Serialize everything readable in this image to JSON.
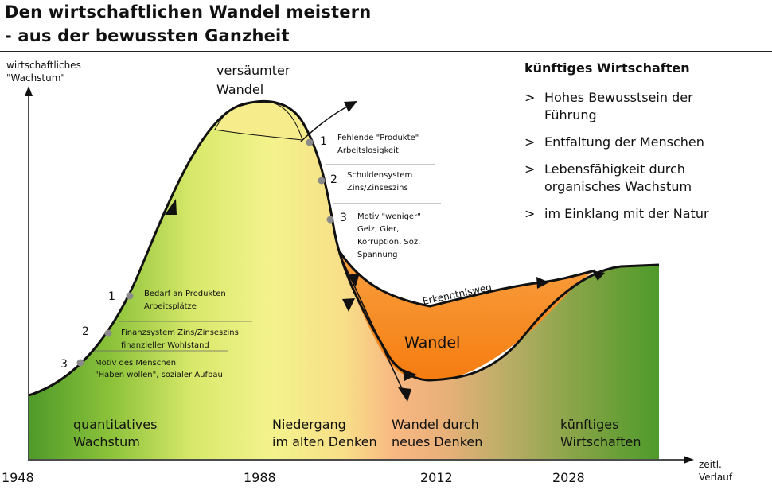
{
  "header": {
    "title_line1": "Den wirtschaftlichen Wandel meistern",
    "title_line2": "- aus der bewussten Ganzheit"
  },
  "axes": {
    "y_label_line1": "wirtschaftliches",
    "y_label_line2": "\"Wachstum\"",
    "x_label_line1": "zeitl.",
    "x_label_line2": "Verlauf",
    "years": [
      "1948",
      "1988",
      "2012",
      "2028"
    ]
  },
  "peak": {
    "line1": "versäumter",
    "line2": "Wandel"
  },
  "rise_points": [
    {
      "num": "1",
      "line1": "Bedarf an Produkten",
      "line2": "Arbeitsplätze"
    },
    {
      "num": "2",
      "line1": "Finanzsystem Zins/Zinseszins",
      "line2": "finanzieller Wohlstand"
    },
    {
      "num": "3",
      "line1": "Motiv des Menschen",
      "line2": "\"Haben wollen\", sozialer Aufbau"
    }
  ],
  "decline_points": [
    {
      "num": "1",
      "lines": [
        "Fehlende \"Produkte\"",
        "Arbeitslosigkeit"
      ]
    },
    {
      "num": "2",
      "lines": [
        "Schuldensystem",
        "Zins/Zinseszins"
      ]
    },
    {
      "num": "3",
      "lines": [
        "Motiv \"weniger\"",
        "Geiz, Gier,",
        "Korruption, Soz.",
        "Spannung"
      ]
    }
  ],
  "wandel": {
    "label": "Wandel",
    "path_label": "Erkenntnisweg"
  },
  "phases": [
    {
      "line1": "quantitatives",
      "line2": "Wachstum"
    },
    {
      "line1": "Niedergang",
      "line2": "im alten Denken"
    },
    {
      "line1": "Wandel durch",
      "line2": "neues Denken"
    },
    {
      "line1": "künftiges",
      "line2": "Wirtschaften"
    }
  ],
  "future": {
    "heading": "künftiges Wirtschaften",
    "items": [
      {
        "line1": "Hohes Bewusstsein der",
        "line2": "Führung"
      },
      {
        "line1": "Entfaltung der Menschen",
        "line2": ""
      },
      {
        "line1": "Lebensfähigkeit durch",
        "line2": "organisches Wachstum"
      },
      {
        "line1": "im Einklang mit der Natur",
        "line2": ""
      }
    ],
    "bullet": ">"
  },
  "colors": {
    "green": "#4e9a2a",
    "yellow": "#f4f48a",
    "peach": "#f7b27c",
    "orange": "#f58012",
    "peak": "#f6ec8c"
  }
}
